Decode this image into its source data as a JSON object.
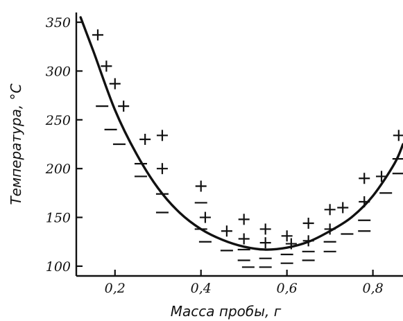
{
  "chart_data": {
    "type": "scatter",
    "title": "",
    "xlabel": "Масса пробы, г",
    "ylabel": "Температура, °С",
    "xlim": [
      0.11,
      0.87
    ],
    "ylim": [
      90,
      360
    ],
    "x_ticks": [
      0.2,
      0.4,
      0.6,
      0.8
    ],
    "x_tick_labels": [
      "0,2",
      "0,4",
      "0,6",
      "0,8"
    ],
    "y_ticks": [
      100,
      150,
      200,
      250,
      300,
      350
    ],
    "y_tick_labels": [
      "100",
      "150",
      "200",
      "250",
      "300",
      "350"
    ],
    "grid": false,
    "curve": {
      "x": [
        0.12,
        0.15,
        0.2,
        0.25,
        0.3,
        0.35,
        0.4,
        0.45,
        0.5,
        0.55,
        0.6,
        0.65,
        0.7,
        0.75,
        0.8,
        0.85,
        0.87
      ],
      "y": [
        355,
        320,
        260,
        215,
        180,
        155,
        138,
        127,
        120,
        117,
        119,
        125,
        136,
        150,
        172,
        205,
        225
      ]
    },
    "series": [
      {
        "marker": "plus",
        "points": [
          [
            0.16,
            337
          ],
          [
            0.18,
            305
          ],
          [
            0.2,
            287
          ],
          [
            0.22,
            264
          ],
          [
            0.27,
            230
          ],
          [
            0.31,
            234
          ],
          [
            0.31,
            200
          ],
          [
            0.4,
            182
          ],
          [
            0.41,
            150
          ],
          [
            0.46,
            136
          ],
          [
            0.5,
            148
          ],
          [
            0.5,
            128
          ],
          [
            0.55,
            138
          ],
          [
            0.55,
            124
          ],
          [
            0.6,
            131
          ],
          [
            0.61,
            123
          ],
          [
            0.65,
            144
          ],
          [
            0.65,
            126
          ],
          [
            0.7,
            158
          ],
          [
            0.7,
            138
          ],
          [
            0.73,
            160
          ],
          [
            0.78,
            190
          ],
          [
            0.78,
            166
          ],
          [
            0.82,
            192
          ],
          [
            0.86,
            234
          ]
        ]
      },
      {
        "marker": "minus",
        "points": [
          [
            0.17,
            264
          ],
          [
            0.19,
            240
          ],
          [
            0.21,
            225
          ],
          [
            0.26,
            205
          ],
          [
            0.26,
            192
          ],
          [
            0.31,
            174
          ],
          [
            0.31,
            155
          ],
          [
            0.4,
            165
          ],
          [
            0.4,
            138
          ],
          [
            0.41,
            125
          ],
          [
            0.46,
            116
          ],
          [
            0.5,
            117
          ],
          [
            0.5,
            106
          ],
          [
            0.51,
            99
          ],
          [
            0.55,
            117
          ],
          [
            0.55,
            108
          ],
          [
            0.55,
            99
          ],
          [
            0.6,
            112
          ],
          [
            0.6,
            103
          ],
          [
            0.65,
            115
          ],
          [
            0.65,
            106
          ],
          [
            0.7,
            125
          ],
          [
            0.7,
            115
          ],
          [
            0.74,
            133
          ],
          [
            0.78,
            147
          ],
          [
            0.78,
            136
          ],
          [
            0.83,
            175
          ],
          [
            0.86,
            210
          ],
          [
            0.86,
            195
          ]
        ]
      }
    ]
  }
}
